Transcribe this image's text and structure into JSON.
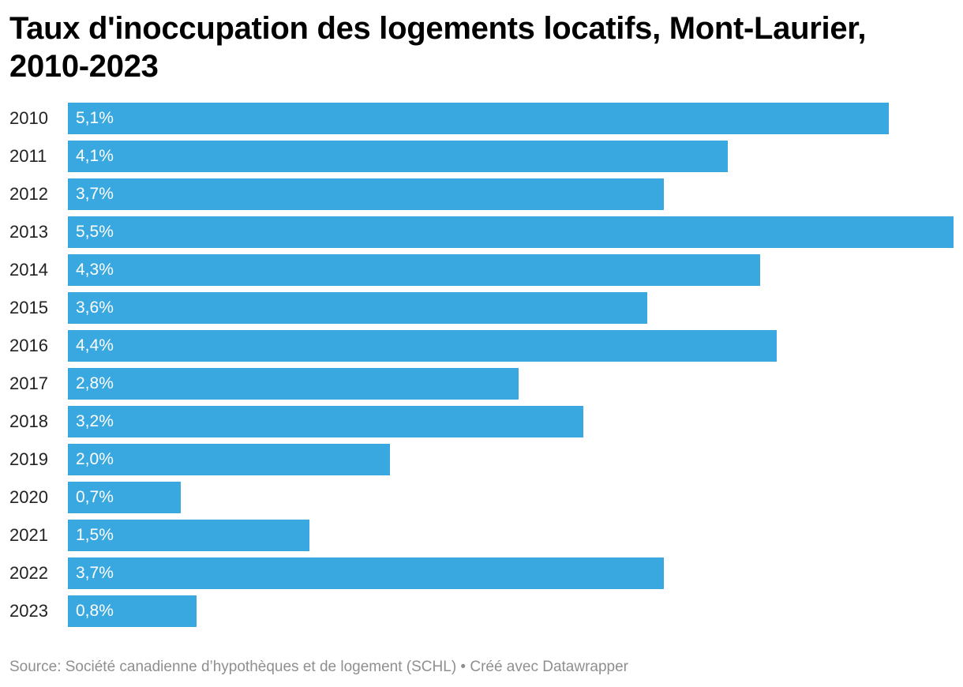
{
  "chart_data": {
    "type": "bar",
    "orientation": "horizontal",
    "title": "Taux d'inoccupation des logements locatifs, Mont-Laurier, 2010-2023",
    "categories": [
      "2010",
      "2011",
      "2012",
      "2013",
      "2014",
      "2015",
      "2016",
      "2017",
      "2018",
      "2019",
      "2020",
      "2021",
      "2022",
      "2023"
    ],
    "values": [
      5.1,
      4.1,
      3.7,
      5.5,
      4.3,
      3.6,
      4.4,
      2.8,
      3.2,
      2.0,
      0.7,
      1.5,
      3.7,
      0.8
    ],
    "value_labels": [
      "5,1%",
      "4,1%",
      "3,7%",
      "5,5%",
      "4,3%",
      "3,6%",
      "4,4%",
      "2,8%",
      "3,2%",
      "2,0%",
      "0,7%",
      "1,5%",
      "3,7%",
      "0,8%"
    ],
    "bar_color": "#3aa8e0",
    "xlim": [
      0,
      5.5
    ],
    "grid": false,
    "legend": "none"
  },
  "footer": {
    "source_text": "Source: Société canadienne d’hypothèques et de logement (SCHL) • Créé avec Datawrapper"
  }
}
